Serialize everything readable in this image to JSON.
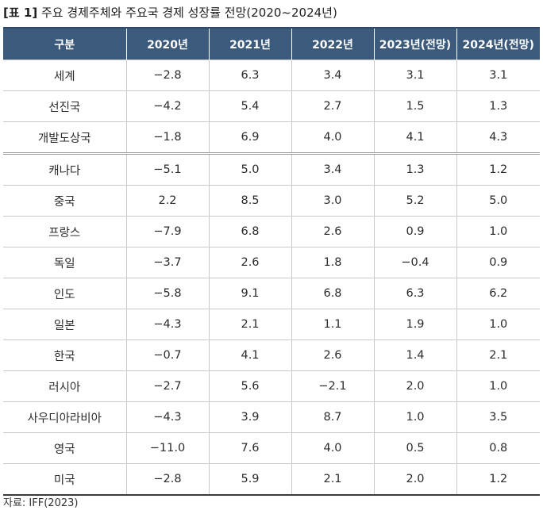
{
  "caption": {
    "tag": "[표 1]",
    "title": "주요 경제주체와 주요국 경제 성장률 전망(2020~2024년)"
  },
  "table": {
    "headers": [
      "구분",
      "2020년",
      "2021년",
      "2022년",
      "2023년(전망)",
      "2024년(전망)"
    ],
    "rows": [
      [
        "세계",
        "−2.8",
        "6.3",
        "3.4",
        "3.1",
        "3.1"
      ],
      [
        "선진국",
        "−4.2",
        "5.4",
        "2.7",
        "1.5",
        "1.3"
      ],
      [
        "개발도상국",
        "−1.8",
        "6.9",
        "4.0",
        "4.1",
        "4.3"
      ],
      [
        "캐나다",
        "−5.1",
        "5.0",
        "3.4",
        "1.3",
        "1.2"
      ],
      [
        "중국",
        "2.2",
        "8.5",
        "3.0",
        "5.2",
        "5.0"
      ],
      [
        "프랑스",
        "−7.9",
        "6.8",
        "2.6",
        "0.9",
        "1.0"
      ],
      [
        "독일",
        "−3.7",
        "2.6",
        "1.8",
        "−0.4",
        "0.9"
      ],
      [
        "인도",
        "−5.8",
        "9.1",
        "6.8",
        "6.3",
        "6.2"
      ],
      [
        "일본",
        "−4.3",
        "2.1",
        "1.1",
        "1.9",
        "1.0"
      ],
      [
        "한국",
        "−0.7",
        "4.1",
        "2.6",
        "1.4",
        "2.1"
      ],
      [
        "러시아",
        "−2.7",
        "5.6",
        "−2.1",
        "2.0",
        "1.0"
      ],
      [
        "사우디아라비아",
        "−4.3",
        "3.9",
        "8.7",
        "1.0",
        "3.5"
      ],
      [
        "영국",
        "−11.0",
        "7.6",
        "4.0",
        "0.5",
        "0.8"
      ],
      [
        "미국",
        "−2.8",
        "5.9",
        "2.1",
        "2.0",
        "1.2"
      ]
    ]
  },
  "source": "자료: IFF(2023)"
}
